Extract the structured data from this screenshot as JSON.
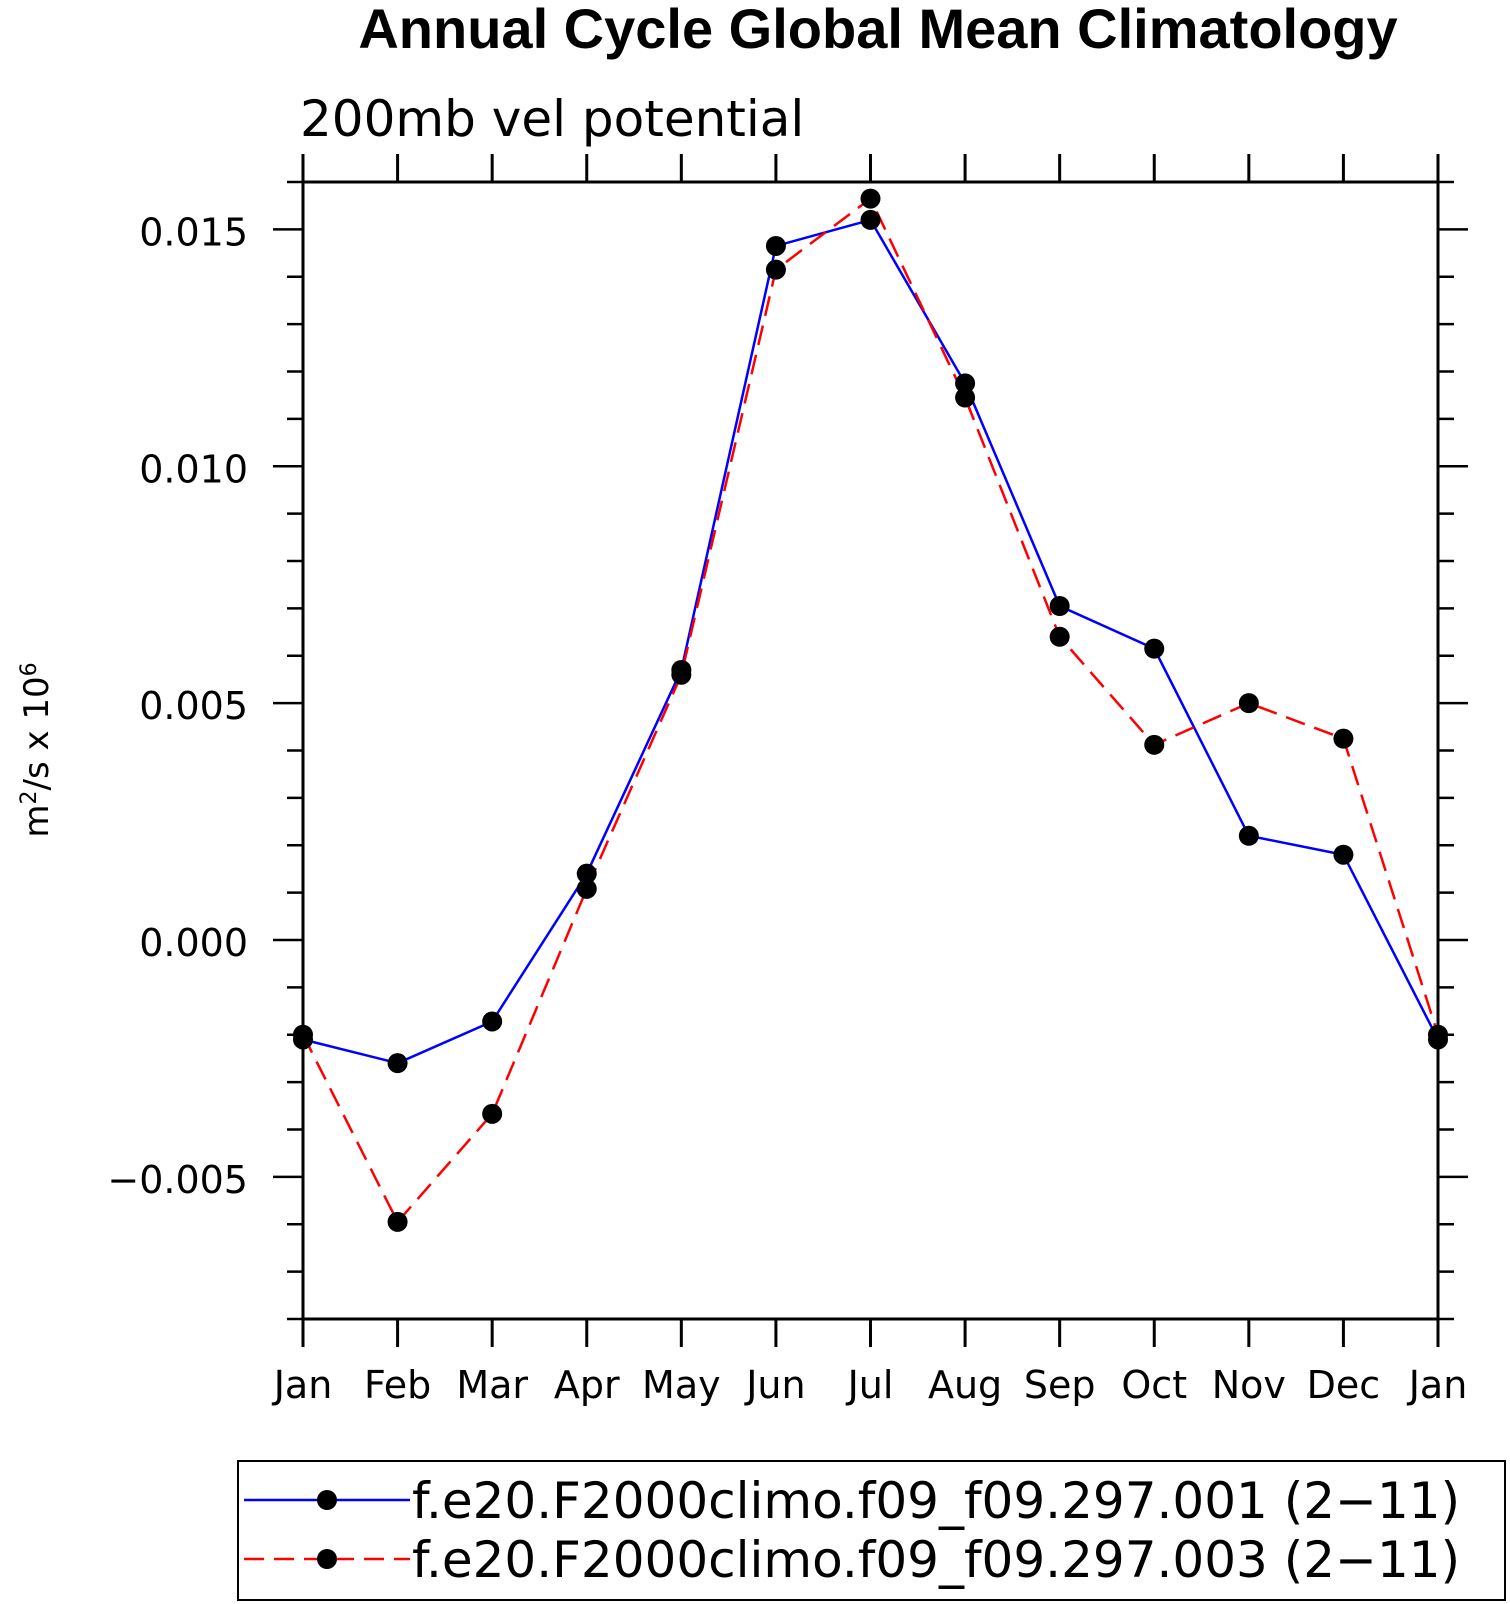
{
  "chart_data": {
    "type": "line",
    "title": "Annual Cycle Global Mean Climatology",
    "subtitle": "200mb vel potential",
    "ylabel": "m²/s x 10⁶",
    "ylabel_base": "m",
    "ylabel_exp1": "2",
    "ylabel_mid": "/s x 10",
    "ylabel_exp2": "6",
    "ylim": [
      -0.008,
      0.016
    ],
    "yticks": [
      -0.005,
      0.0,
      0.005,
      0.01,
      0.015
    ],
    "ytick_labels": [
      "−0.005",
      "0.000",
      "0.005",
      "0.010",
      "0.015"
    ],
    "categories": [
      "Jan",
      "Feb",
      "Mar",
      "Apr",
      "May",
      "Jun",
      "Jul",
      "Aug",
      "Sep",
      "Oct",
      "Nov",
      "Dec",
      "Jan"
    ],
    "series": [
      {
        "name": "f.e20.F2000climo.f09_f09.297.001 (2−11)",
        "color": "#0000ff",
        "dash": "solid",
        "values": [
          -0.0021,
          -0.0026,
          -0.00172,
          0.0014,
          0.0057,
          0.01465,
          0.0152,
          0.01175,
          0.00705,
          0.00615,
          0.0022,
          0.0018,
          -0.0021
        ]
      },
      {
        "name": "f.e20.F2000climo.f09_f09.297.003 (2−11)",
        "color": "#ff0000",
        "dash": "dashed",
        "values": [
          -0.002,
          -0.00595,
          -0.00367,
          0.00108,
          0.0056,
          0.01415,
          0.01565,
          0.01145,
          0.0064,
          0.00412,
          0.005,
          0.00425,
          -0.002
        ]
      }
    ],
    "legend_position": "bottom"
  }
}
